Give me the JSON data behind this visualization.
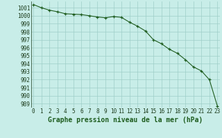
{
  "x": [
    0,
    1,
    2,
    3,
    4,
    5,
    6,
    7,
    8,
    9,
    10,
    11,
    12,
    13,
    14,
    15,
    16,
    17,
    18,
    19,
    20,
    21,
    22,
    23
  ],
  "y": [
    1001.4,
    1001.0,
    1000.7,
    1000.5,
    1000.25,
    1000.2,
    1000.15,
    1000.0,
    999.85,
    999.75,
    999.9,
    999.8,
    999.2,
    998.7,
    998.1,
    997.0,
    996.5,
    995.8,
    995.3,
    994.5,
    993.6,
    993.1,
    992.0,
    988.7
  ],
  "line_color": "#1e5c1e",
  "marker_color": "#1e5c1e",
  "bg_color": "#c8ede8",
  "grid_color": "#9ecec8",
  "title": "Graphe pression niveau de la mer (hPa)",
  "yticks": [
    989,
    990,
    991,
    992,
    993,
    994,
    995,
    996,
    997,
    998,
    999,
    1000,
    1001
  ],
  "xticks": [
    0,
    1,
    2,
    3,
    4,
    5,
    6,
    7,
    8,
    9,
    10,
    11,
    12,
    13,
    14,
    15,
    16,
    17,
    18,
    19,
    20,
    21,
    22,
    23
  ],
  "ylim": [
    988.5,
    1001.8
  ],
  "xlim": [
    -0.3,
    23.3
  ],
  "tick_fontsize": 5.5,
  "title_fontsize": 7.0,
  "title_color": "#1e5c1e",
  "linewidth": 0.8,
  "markersize": 2.5
}
